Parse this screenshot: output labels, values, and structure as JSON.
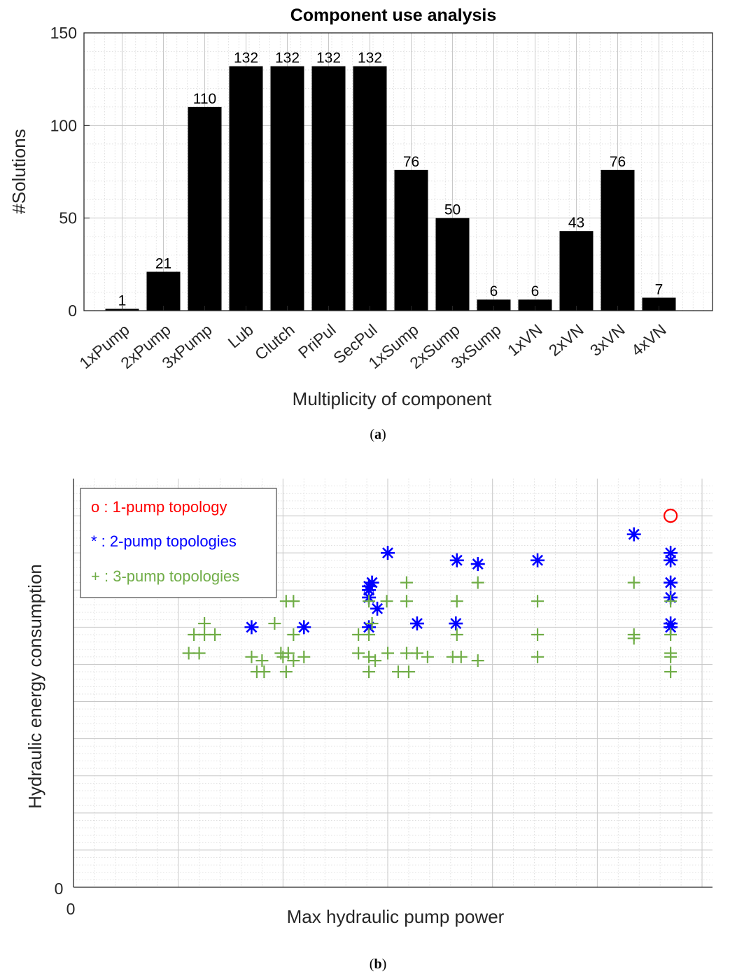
{
  "colors": {
    "bar": "#000000",
    "grid": "#c8c8c8",
    "axis": "#262626",
    "one_pump": "#ff0000",
    "two_pump": "#0000ff",
    "three_pump": "#70ad47"
  },
  "chart_data": [
    {
      "type": "bar",
      "title": "Component use analysis",
      "xlabel": "Multiplicity of component",
      "ylabel": "#Solutions",
      "ylim": [
        0,
        150
      ],
      "yticks": [
        0,
        50,
        100,
        150
      ],
      "grid": true,
      "categories": [
        "1xPump",
        "2xPump",
        "3xPump",
        "Lub",
        "Clutch",
        "PriPul",
        "SecPul",
        "1xSump",
        "2xSump",
        "3xSump",
        "1xVN",
        "2xVN",
        "3xVN",
        "4xVN"
      ],
      "values": [
        1,
        21,
        110,
        132,
        132,
        132,
        132,
        76,
        50,
        6,
        6,
        43,
        76,
        7
      ],
      "data_labels": [
        "1",
        "21",
        "110",
        "132",
        "132",
        "132",
        "132",
        "76",
        "50",
        "6",
        "6",
        "43",
        "76",
        "7"
      ],
      "caption_letter": "a"
    },
    {
      "type": "scatter",
      "xlabel": "Max hydraulic pump power",
      "ylabel": "Hydraulic energy consumption",
      "x_tick_label": "0",
      "y_tick_label": "0",
      "xlim": [
        0,
        6.1
      ],
      "ylim": [
        0,
        11
      ],
      "grid": true,
      "legend_position": "top-left",
      "series": [
        {
          "name": "1-pump topology",
          "marker": "o",
          "color": "#ff0000",
          "points": [
            [
              5.7,
              10.0
            ]
          ]
        },
        {
          "name": "2-pump topologies",
          "marker": "*",
          "color": "#0000ff",
          "points": [
            [
              3.0,
              9.0
            ],
            [
              3.66,
              8.8
            ],
            [
              3.86,
              8.7
            ],
            [
              4.43,
              8.8
            ],
            [
              5.35,
              9.5
            ],
            [
              5.7,
              9.0
            ],
            [
              5.7,
              8.8
            ],
            [
              2.82,
              8.1
            ],
            [
              2.82,
              8.0
            ],
            [
              2.85,
              8.2
            ],
            [
              5.7,
              8.2
            ],
            [
              2.82,
              7.8
            ],
            [
              2.9,
              7.5
            ],
            [
              5.7,
              7.8
            ],
            [
              1.7,
              7.0
            ],
            [
              2.2,
              7.0
            ],
            [
              3.28,
              7.1
            ],
            [
              3.65,
              7.1
            ],
            [
              2.82,
              7.0
            ],
            [
              5.7,
              7.0
            ],
            [
              5.7,
              7.1
            ]
          ]
        },
        {
          "name": "3-pump topologies",
          "marker": "+",
          "color": "#70ad47",
          "points": [
            [
              3.18,
              8.2
            ],
            [
              3.86,
              8.2
            ],
            [
              5.35,
              8.2
            ],
            [
              2.03,
              7.7
            ],
            [
              2.1,
              7.7
            ],
            [
              2.82,
              7.7
            ],
            [
              2.99,
              7.7
            ],
            [
              3.18,
              7.7
            ],
            [
              3.66,
              7.7
            ],
            [
              4.43,
              7.7
            ],
            [
              5.7,
              7.7
            ],
            [
              1.25,
              7.1
            ],
            [
              1.92,
              7.1
            ],
            [
              2.85,
              7.1
            ],
            [
              1.15,
              6.8
            ],
            [
              1.25,
              6.8
            ],
            [
              1.35,
              6.8
            ],
            [
              2.1,
              6.8
            ],
            [
              2.72,
              6.8
            ],
            [
              2.82,
              6.8
            ],
            [
              3.66,
              6.8
            ],
            [
              4.43,
              6.8
            ],
            [
              5.35,
              6.8
            ],
            [
              5.35,
              6.7
            ],
            [
              5.7,
              6.8
            ],
            [
              1.1,
              6.3
            ],
            [
              1.2,
              6.3
            ],
            [
              1.7,
              6.2
            ],
            [
              1.8,
              6.1
            ],
            [
              1.98,
              6.3
            ],
            [
              2.05,
              6.3
            ],
            [
              2.0,
              6.2
            ],
            [
              2.1,
              6.1
            ],
            [
              2.2,
              6.2
            ],
            [
              2.72,
              6.3
            ],
            [
              2.82,
              6.2
            ],
            [
              2.88,
              6.1
            ],
            [
              3.0,
              6.3
            ],
            [
              3.18,
              6.3
            ],
            [
              3.28,
              6.3
            ],
            [
              3.38,
              6.2
            ],
            [
              3.62,
              6.2
            ],
            [
              3.7,
              6.2
            ],
            [
              3.86,
              6.1
            ],
            [
              4.43,
              6.2
            ],
            [
              5.7,
              6.3
            ],
            [
              5.7,
              6.2
            ],
            [
              1.75,
              5.8
            ],
            [
              1.82,
              5.8
            ],
            [
              2.03,
              5.8
            ],
            [
              2.82,
              5.8
            ],
            [
              3.1,
              5.8
            ],
            [
              3.2,
              5.8
            ],
            [
              5.7,
              5.8
            ]
          ]
        }
      ],
      "legend": [
        {
          "symbol": "o",
          "text": "1-pump topology",
          "color": "#ff0000"
        },
        {
          "symbol": "*",
          "text": "2-pump topologies",
          "color": "#0000ff"
        },
        {
          "symbol": "+",
          "text": "3-pump topologies",
          "color": "#70ad47"
        }
      ],
      "caption_letter": "b"
    }
  ]
}
